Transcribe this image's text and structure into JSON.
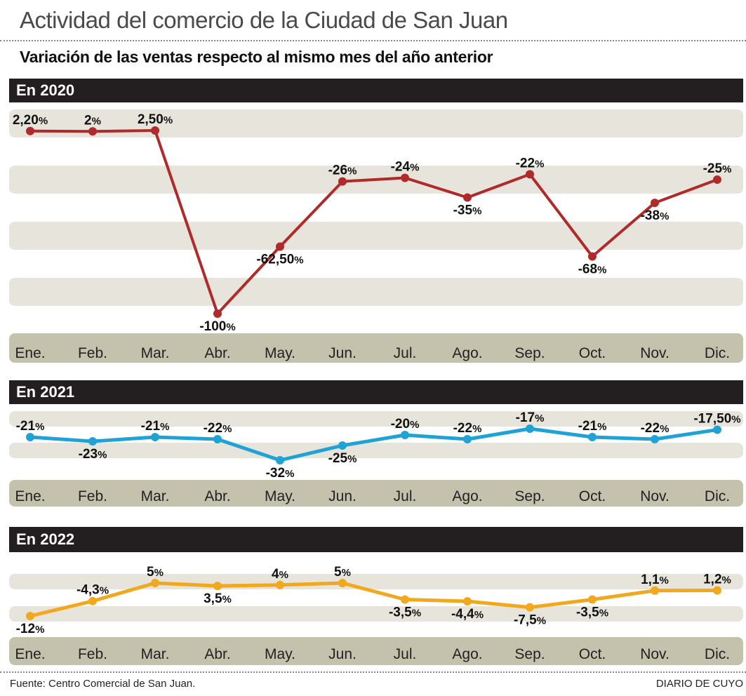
{
  "header": {
    "title": "Actividad del comercio de la Ciudad de San Juan",
    "subtitle": "Variación de las ventas respecto al mismo mes del año anterior"
  },
  "footer": {
    "source": "Fuente: Centro Comercial de San Juan.",
    "brand": "DIARIO DE CUYO"
  },
  "colors": {
    "y2020": "#b02a2a",
    "y2021": "#1fa3d6",
    "y2022": "#f2a81d",
    "band": "#e7e4dc",
    "axis_band": "#c4c1ad",
    "header_bar": "#231f20"
  },
  "chart_data": [
    {
      "type": "line",
      "title": "En 2020",
      "categories": [
        "Ene.",
        "Feb.",
        "Mar.",
        "Abr.",
        "May.",
        "Jun.",
        "Jul.",
        "Ago.",
        "Sep.",
        "Oct.",
        "Nov.",
        "Dic."
      ],
      "values": [
        2.2,
        2,
        2.5,
        -100,
        -62.5,
        -26,
        -24,
        -35,
        -22,
        -68,
        -38,
        -25
      ],
      "labels": [
        "2,20",
        "2",
        "2,50",
        "-100",
        "-62,50",
        "-26",
        "-24",
        "-35",
        "-22",
        "-68",
        "-38",
        "-25"
      ],
      "label_pos": [
        "above",
        "above",
        "above",
        "below",
        "below",
        "above",
        "above",
        "below",
        "above",
        "below",
        "below",
        "above"
      ],
      "unit": "%",
      "xlabel": "",
      "ylabel": "",
      "ylim": [
        -100,
        2.5
      ],
      "grid": false
    },
    {
      "type": "line",
      "title": "En 2021",
      "categories": [
        "Ene.",
        "Feb.",
        "Mar.",
        "Abr.",
        "May.",
        "Jun.",
        "Jul.",
        "Ago.",
        "Sep.",
        "Oct.",
        "Nov.",
        "Dic."
      ],
      "values": [
        -21,
        -23,
        -21,
        -22,
        -32,
        -25,
        -20,
        -22,
        -17,
        -21,
        -22,
        -17.5
      ],
      "labels": [
        "-21",
        "-23",
        "-21",
        "-22",
        "-32",
        "-25",
        "-20",
        "-22",
        "-17",
        "-21",
        "-22",
        "-17,50"
      ],
      "label_pos": [
        "above",
        "below",
        "above",
        "above",
        "below",
        "below",
        "above",
        "above",
        "above",
        "above",
        "above",
        "above"
      ],
      "unit": "%",
      "xlabel": "",
      "ylabel": "",
      "ylim": [
        -32,
        -17
      ],
      "grid": false
    },
    {
      "type": "line",
      "title": "En 2022",
      "categories": [
        "Ene.",
        "Feb.",
        "Mar.",
        "Abr.",
        "May.",
        "Jun.",
        "Jul.",
        "Ago.",
        "Sep.",
        "Oct.",
        "Nov.",
        "Dic."
      ],
      "values": [
        -12,
        -4.3,
        5,
        3.5,
        4,
        5,
        -3.5,
        -4.4,
        -7.5,
        -3.5,
        1.1,
        1.2
      ],
      "labels": [
        "-12",
        "-4,3",
        "5",
        "3,5",
        "4",
        "5",
        "-3,5",
        "-4,4",
        "-7,5",
        "-3,5",
        "1,1",
        "1,2"
      ],
      "label_pos": [
        "below",
        "above",
        "above",
        "below",
        "above",
        "above",
        "below",
        "below",
        "below",
        "below",
        "above",
        "above"
      ],
      "unit": "%",
      "xlabel": "",
      "ylabel": "",
      "ylim": [
        -12,
        5
      ],
      "grid": false
    }
  ]
}
